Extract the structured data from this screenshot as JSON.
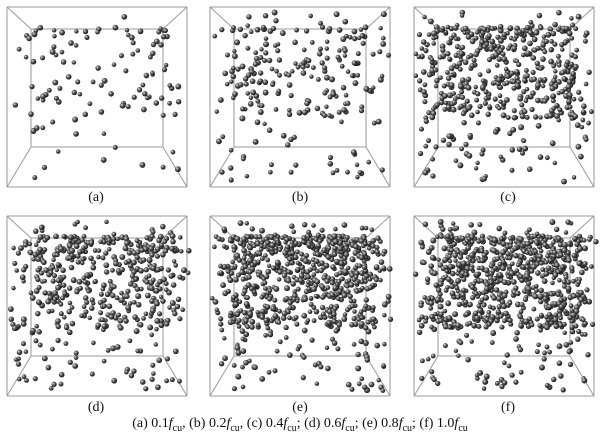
{
  "panels": [
    {
      "label": "(a)",
      "density": 0.08
    },
    {
      "label": "(b)",
      "density": 0.22
    },
    {
      "label": "(c)",
      "density": 0.55
    },
    {
      "label": "(d)",
      "density": 0.5
    },
    {
      "label": "(e)",
      "density": 0.82
    },
    {
      "label": "(f)",
      "density": 0.9
    }
  ],
  "caption": {
    "parts": [
      {
        "prefix": "(a) 0.1",
        "f": "f",
        "sub": "cu",
        "sep": ", "
      },
      {
        "prefix": "(b) 0.2",
        "f": "f",
        "sub": "cu",
        "sep": ", "
      },
      {
        "prefix": "(c) 0.4",
        "f": "f",
        "sub": "cu",
        "sep": ";  "
      },
      {
        "prefix": "(d) 0.6",
        "f": "f",
        "sub": "cu",
        "sep": ";  "
      },
      {
        "prefix": "(e) 0.8",
        "f": "f",
        "sub": "cu",
        "sep": ";  "
      },
      {
        "prefix": "(f) 1.0",
        "f": "f",
        "sub": "cu",
        "sep": ""
      }
    ]
  },
  "colors": {
    "box": "#9a9a9a",
    "sphere_dark": "#111111",
    "sphere_mid": "#555555",
    "sphere_light": "#dddddd"
  }
}
